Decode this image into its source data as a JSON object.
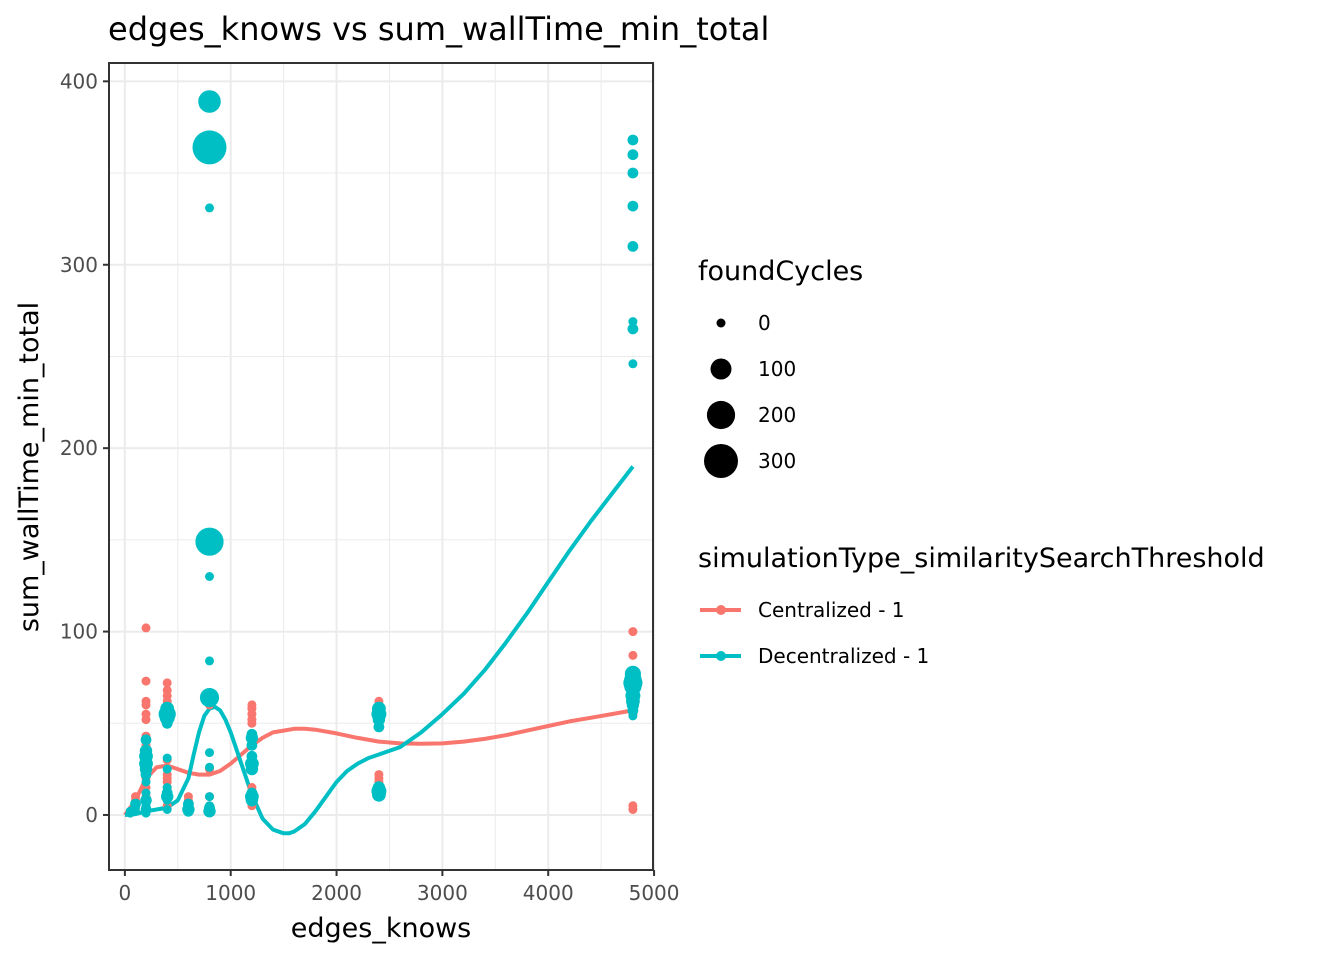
{
  "chart_data": {
    "type": "scatter",
    "title": "edges_knows  vs  sum_wallTime_min_total",
    "xlabel": "edges_knows",
    "ylabel": "sum_wallTime_min_total",
    "xlim": [
      -150,
      4990
    ],
    "ylim": [
      -30,
      410
    ],
    "x_ticks": [
      0,
      1000,
      2000,
      3000,
      4000,
      5000
    ],
    "y_ticks": [
      0,
      100,
      200,
      300,
      400
    ],
    "grid": true,
    "legend_position": "right",
    "size_legend": {
      "title": "foundCycles",
      "entries": [
        {
          "label": "0",
          "value": 0
        },
        {
          "label": "100",
          "value": 100
        },
        {
          "label": "200",
          "value": 200
        },
        {
          "label": "300",
          "value": 300
        }
      ]
    },
    "color_legend": {
      "title": "simulationType_similaritySearchThreshold"
    },
    "series": [
      {
        "name": "Centralized - 1",
        "color": "#F8766D",
        "points": [
          [
            50,
            1,
            0
          ],
          [
            50,
            2,
            0
          ],
          [
            100,
            5,
            0
          ],
          [
            100,
            8,
            0
          ],
          [
            100,
            10,
            0
          ],
          [
            200,
            2,
            0
          ],
          [
            200,
            5,
            0
          ],
          [
            200,
            10,
            0
          ],
          [
            200,
            15,
            0
          ],
          [
            200,
            20,
            0
          ],
          [
            200,
            28,
            0
          ],
          [
            200,
            38,
            0
          ],
          [
            200,
            43,
            0
          ],
          [
            200,
            52,
            0
          ],
          [
            200,
            55,
            0
          ],
          [
            200,
            60,
            0
          ],
          [
            200,
            62,
            0
          ],
          [
            200,
            73,
            0
          ],
          [
            200,
            102,
            0
          ],
          [
            400,
            5,
            0
          ],
          [
            400,
            8,
            0
          ],
          [
            400,
            12,
            0
          ],
          [
            400,
            15,
            0
          ],
          [
            400,
            18,
            0
          ],
          [
            400,
            20,
            0
          ],
          [
            400,
            22,
            0
          ],
          [
            400,
            30,
            0
          ],
          [
            400,
            50,
            0
          ],
          [
            400,
            55,
            0
          ],
          [
            400,
            58,
            0
          ],
          [
            400,
            62,
            0
          ],
          [
            400,
            65,
            0
          ],
          [
            400,
            68,
            0
          ],
          [
            400,
            72,
            0
          ],
          [
            600,
            3,
            0
          ],
          [
            600,
            5,
            0
          ],
          [
            600,
            8,
            0
          ],
          [
            600,
            10,
            0
          ],
          [
            800,
            3,
            0
          ],
          [
            800,
            5,
            0
          ],
          [
            800,
            10,
            0
          ],
          [
            800,
            25,
            0
          ],
          [
            800,
            60,
            0
          ],
          [
            800,
            62,
            0
          ],
          [
            1200,
            5,
            0
          ],
          [
            1200,
            10,
            0
          ],
          [
            1200,
            15,
            0
          ],
          [
            1200,
            25,
            0
          ],
          [
            1200,
            30,
            0
          ],
          [
            1200,
            40,
            0
          ],
          [
            1200,
            50,
            0
          ],
          [
            1200,
            52,
            0
          ],
          [
            1200,
            55,
            0
          ],
          [
            1200,
            58,
            0
          ],
          [
            1200,
            60,
            0
          ],
          [
            2400,
            10,
            0
          ],
          [
            2400,
            12,
            0
          ],
          [
            2400,
            15,
            0
          ],
          [
            2400,
            18,
            0
          ],
          [
            2400,
            20,
            0
          ],
          [
            2400,
            22,
            0
          ],
          [
            2400,
            58,
            0
          ],
          [
            2400,
            60,
            0
          ],
          [
            2400,
            62,
            0
          ],
          [
            4800,
            3,
            0
          ],
          [
            4800,
            5,
            0
          ],
          [
            4800,
            55,
            0
          ],
          [
            4800,
            58,
            0
          ],
          [
            4800,
            60,
            0
          ],
          [
            4800,
            62,
            0
          ],
          [
            4800,
            65,
            0
          ],
          [
            4800,
            68,
            0
          ],
          [
            4800,
            70,
            0
          ],
          [
            4800,
            87,
            0
          ],
          [
            4800,
            100,
            0
          ]
        ],
        "smooth": [
          [
            0,
            0
          ],
          [
            100,
            8
          ],
          [
            200,
            20
          ],
          [
            300,
            26
          ],
          [
            400,
            27
          ],
          [
            500,
            25
          ],
          [
            600,
            23
          ],
          [
            700,
            22
          ],
          [
            800,
            22
          ],
          [
            900,
            24
          ],
          [
            1000,
            28
          ],
          [
            1100,
            33
          ],
          [
            1200,
            38
          ],
          [
            1300,
            42
          ],
          [
            1400,
            45
          ],
          [
            1500,
            46
          ],
          [
            1600,
            47
          ],
          [
            1700,
            47
          ],
          [
            1800,
            46.5
          ],
          [
            2000,
            44.5
          ],
          [
            2200,
            42
          ],
          [
            2400,
            40
          ],
          [
            2600,
            39
          ],
          [
            2800,
            38.8
          ],
          [
            3000,
            39
          ],
          [
            3200,
            40
          ],
          [
            3400,
            41.5
          ],
          [
            3600,
            43.5
          ],
          [
            3800,
            46
          ],
          [
            4000,
            48.5
          ],
          [
            4200,
            51
          ],
          [
            4400,
            53
          ],
          [
            4600,
            55
          ],
          [
            4800,
            57
          ]
        ]
      },
      {
        "name": "Decentralized - 1",
        "color": "#00BFC4",
        "points": [
          [
            50,
            1,
            0
          ],
          [
            50,
            2,
            0
          ],
          [
            100,
            2,
            0
          ],
          [
            100,
            4,
            0
          ],
          [
            100,
            6,
            10
          ],
          [
            200,
            1,
            0
          ],
          [
            200,
            2,
            0
          ],
          [
            200,
            3,
            10
          ],
          [
            200,
            5,
            0
          ],
          [
            200,
            8,
            15
          ],
          [
            200,
            12,
            0
          ],
          [
            200,
            18,
            0
          ],
          [
            200,
            22,
            10
          ],
          [
            200,
            25,
            20
          ],
          [
            200,
            28,
            30
          ],
          [
            200,
            32,
            30
          ],
          [
            200,
            35,
            20
          ],
          [
            200,
            41,
            10
          ],
          [
            400,
            3,
            0
          ],
          [
            400,
            8,
            0
          ],
          [
            400,
            10,
            20
          ],
          [
            400,
            12,
            10
          ],
          [
            400,
            15,
            0
          ],
          [
            400,
            25,
            0
          ],
          [
            400,
            31,
            0
          ],
          [
            400,
            50,
            10
          ],
          [
            400,
            53,
            40
          ],
          [
            400,
            55,
            60
          ],
          [
            400,
            58,
            30
          ],
          [
            600,
            2,
            10
          ],
          [
            600,
            3,
            20
          ],
          [
            600,
            4,
            10
          ],
          [
            600,
            5,
            0
          ],
          [
            600,
            6,
            10
          ],
          [
            800,
            2,
            20
          ],
          [
            800,
            4,
            10
          ],
          [
            800,
            5,
            0
          ],
          [
            800,
            10,
            0
          ],
          [
            800,
            26,
            0
          ],
          [
            800,
            34,
            0
          ],
          [
            800,
            64,
            80
          ],
          [
            800,
            84,
            0
          ],
          [
            800,
            130,
            0
          ],
          [
            800,
            149,
            200
          ],
          [
            800,
            331,
            0
          ],
          [
            800,
            364,
            300
          ],
          [
            800,
            389,
            120
          ],
          [
            1200,
            8,
            20
          ],
          [
            1200,
            10,
            30
          ],
          [
            1200,
            12,
            10
          ],
          [
            1200,
            25,
            20
          ],
          [
            1200,
            28,
            30
          ],
          [
            1200,
            32,
            10
          ],
          [
            1200,
            38,
            10
          ],
          [
            1200,
            42,
            20
          ],
          [
            1200,
            44,
            10
          ],
          [
            2400,
            11,
            30
          ],
          [
            2400,
            13,
            40
          ],
          [
            2400,
            15,
            20
          ],
          [
            2400,
            48,
            10
          ],
          [
            2400,
            52,
            20
          ],
          [
            2400,
            55,
            40
          ],
          [
            2400,
            58,
            30
          ],
          [
            4800,
            54,
            0
          ],
          [
            4800,
            57,
            10
          ],
          [
            4800,
            60,
            20
          ],
          [
            4800,
            62,
            30
          ],
          [
            4800,
            65,
            40
          ],
          [
            4800,
            70,
            60
          ],
          [
            4800,
            72,
            80
          ],
          [
            4800,
            74,
            60
          ],
          [
            4800,
            77,
            50
          ],
          [
            4800,
            246,
            0
          ],
          [
            4800,
            265,
            10
          ],
          [
            4800,
            269,
            0
          ],
          [
            4800,
            310,
            10
          ],
          [
            4800,
            332,
            10
          ],
          [
            4800,
            350,
            10
          ],
          [
            4800,
            360,
            10
          ],
          [
            4800,
            368,
            10
          ]
        ],
        "smooth": [
          [
            0,
            0
          ],
          [
            100,
            0.5
          ],
          [
            200,
            2
          ],
          [
            300,
            3
          ],
          [
            400,
            4
          ],
          [
            500,
            8
          ],
          [
            600,
            20
          ],
          [
            650,
            33
          ],
          [
            700,
            45
          ],
          [
            750,
            54
          ],
          [
            800,
            58
          ],
          [
            850,
            59
          ],
          [
            900,
            57
          ],
          [
            950,
            52
          ],
          [
            1000,
            45
          ],
          [
            1100,
            28
          ],
          [
            1200,
            11
          ],
          [
            1300,
            -2
          ],
          [
            1400,
            -8
          ],
          [
            1500,
            -10
          ],
          [
            1550,
            -10
          ],
          [
            1600,
            -9
          ],
          [
            1700,
            -5
          ],
          [
            1800,
            2
          ],
          [
            1900,
            10
          ],
          [
            2000,
            18
          ],
          [
            2100,
            24
          ],
          [
            2200,
            28
          ],
          [
            2300,
            31
          ],
          [
            2400,
            33
          ],
          [
            2600,
            37
          ],
          [
            2800,
            45
          ],
          [
            3000,
            55
          ],
          [
            3200,
            66
          ],
          [
            3400,
            79
          ],
          [
            3600,
            94
          ],
          [
            3800,
            110
          ],
          [
            4000,
            127
          ],
          [
            4200,
            144
          ],
          [
            4400,
            160
          ],
          [
            4600,
            175
          ],
          [
            4800,
            190
          ]
        ]
      }
    ]
  }
}
